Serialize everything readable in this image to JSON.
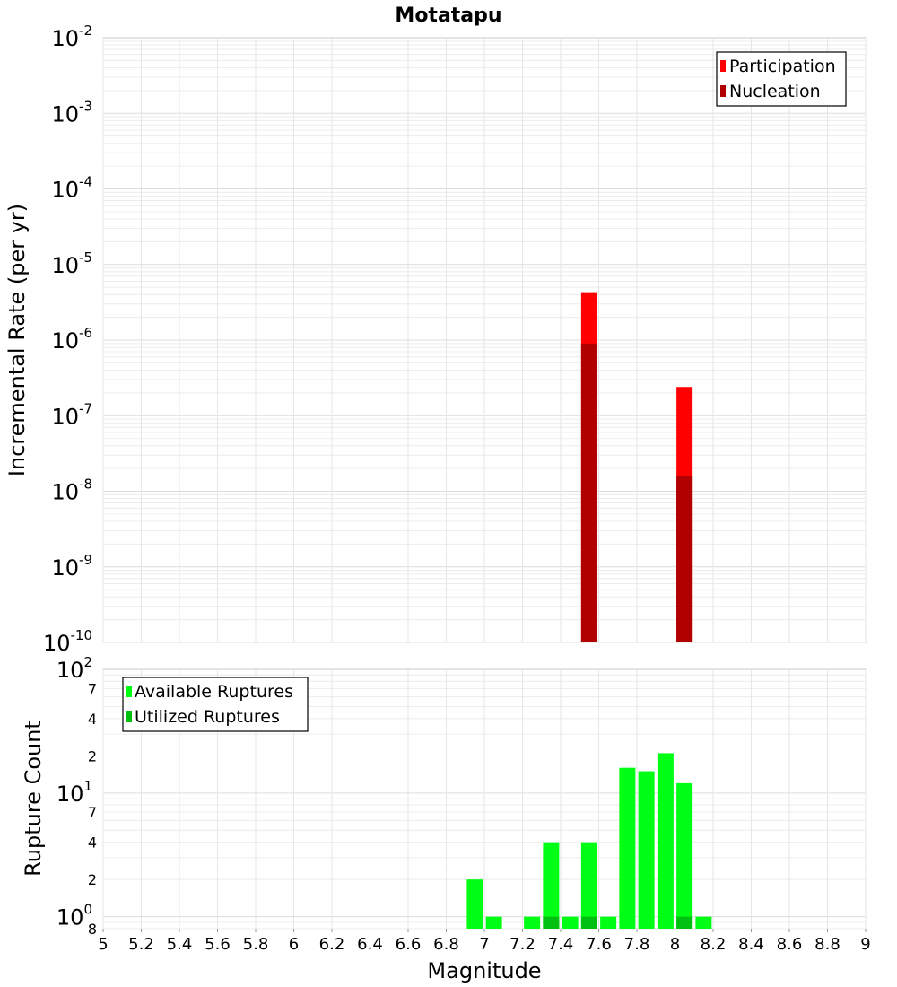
{
  "chart_data": [
    {
      "type": "bar",
      "title": "Motatapu",
      "ylabel": "Incremental Rate (per yr)",
      "xlabel": "Magnitude",
      "yscale": "log",
      "ylim": [
        1e-10,
        0.01
      ],
      "xlim": [
        5,
        9
      ],
      "grid": true,
      "legend_position": "top-right",
      "series": [
        {
          "name": "Participation",
          "color": "#ff0000",
          "points": [
            {
              "x": 7.55,
              "y": 4.3e-06
            },
            {
              "x": 8.05,
              "y": 2.4e-07
            }
          ]
        },
        {
          "name": "Nucleation",
          "color": "#b00000",
          "points": [
            {
              "x": 7.55,
              "y": 9e-07
            },
            {
              "x": 8.05,
              "y": 1.6e-08
            }
          ]
        }
      ]
    },
    {
      "type": "bar",
      "ylabel": "Rupture Count",
      "xlabel": "Magnitude",
      "yscale": "log",
      "ylim": [
        0.8,
        100
      ],
      "xlim": [
        5,
        9
      ],
      "grid": true,
      "legend_position": "top-left",
      "series": [
        {
          "name": "Available Ruptures",
          "color": "#00ff14",
          "points": [
            {
              "x": 6.95,
              "y": 2
            },
            {
              "x": 7.05,
              "y": 1
            },
            {
              "x": 7.25,
              "y": 1
            },
            {
              "x": 7.35,
              "y": 4
            },
            {
              "x": 7.45,
              "y": 1
            },
            {
              "x": 7.55,
              "y": 4
            },
            {
              "x": 7.65,
              "y": 1
            },
            {
              "x": 7.75,
              "y": 16
            },
            {
              "x": 7.85,
              "y": 15
            },
            {
              "x": 7.95,
              "y": 21
            },
            {
              "x": 8.05,
              "y": 12
            },
            {
              "x": 8.15,
              "y": 1
            }
          ]
        },
        {
          "name": "Utilized Ruptures",
          "color": "#00c010",
          "points": [
            {
              "x": 7.35,
              "y": 1
            },
            {
              "x": 7.55,
              "y": 1
            },
            {
              "x": 8.05,
              "y": 1
            }
          ]
        }
      ]
    }
  ],
  "x_ticks": [
    "5",
    "5.2",
    "5.4",
    "5.6",
    "5.8",
    "6",
    "6.2",
    "6.4",
    "6.6",
    "6.8",
    "7",
    "7.2",
    "7.4",
    "7.6",
    "7.8",
    "8",
    "8.2",
    "8.4",
    "8.6",
    "8.8",
    "9"
  ],
  "top_y_ticks": [
    {
      "base": "10",
      "exp": "-2"
    },
    {
      "base": "10",
      "exp": "-3"
    },
    {
      "base": "10",
      "exp": "-4"
    },
    {
      "base": "10",
      "exp": "-5"
    },
    {
      "base": "10",
      "exp": "-6"
    },
    {
      "base": "10",
      "exp": "-7"
    },
    {
      "base": "10",
      "exp": "-8"
    },
    {
      "base": "10",
      "exp": "-9"
    },
    {
      "base": "10",
      "exp": "-10"
    }
  ],
  "bottom_y_ticks": [
    {
      "label": "10",
      "exp": "2",
      "kind": "major"
    },
    {
      "label": "7",
      "kind": "minor"
    },
    {
      "label": "4",
      "kind": "minor"
    },
    {
      "label": "2",
      "kind": "minor"
    },
    {
      "label": "10",
      "exp": "1",
      "kind": "major"
    },
    {
      "label": "7",
      "kind": "minor"
    },
    {
      "label": "4",
      "kind": "minor"
    },
    {
      "label": "2",
      "kind": "minor"
    },
    {
      "label": "10",
      "exp": "0",
      "kind": "major"
    },
    {
      "label": "8",
      "kind": "minor"
    }
  ]
}
